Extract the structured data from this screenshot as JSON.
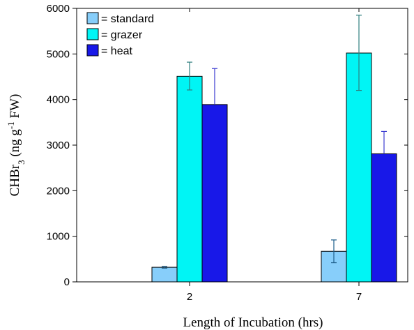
{
  "chart_data": {
    "type": "bar",
    "title": "",
    "xlabel": "Length of Incubation (hrs)",
    "ylabel": {
      "prefix": "CHBr",
      "prefix_sub": "3",
      "mid": " (ng g",
      "mid_sup": "-1",
      "suffix": " FW)"
    },
    "categories": [
      "2",
      "7"
    ],
    "ylim": [
      0,
      6000
    ],
    "yticks": [
      "0",
      "1000",
      "2000",
      "3000",
      "4000",
      "5000",
      "6000"
    ],
    "legend_position": "top-left",
    "series": [
      {
        "name": "= standard",
        "color": "#87cefa",
        "error_color": "#1f5f8b",
        "values": [
          320,
          670
        ],
        "error_low": [
          300,
          420
        ],
        "error_high": [
          340,
          920
        ]
      },
      {
        "name": "= grazer",
        "color": "#00f5f5",
        "error_color": "#2f7f7f",
        "values": [
          4510,
          5020
        ],
        "error_low": [
          4210,
          4200
        ],
        "error_high": [
          4820,
          5850
        ]
      },
      {
        "name": "= heat",
        "color": "#1818e8",
        "error_color": "#3a3ad0",
        "values": [
          3890,
          2810
        ],
        "error_low": [
          3890,
          2810
        ],
        "error_high": [
          4680,
          3300
        ]
      }
    ]
  }
}
